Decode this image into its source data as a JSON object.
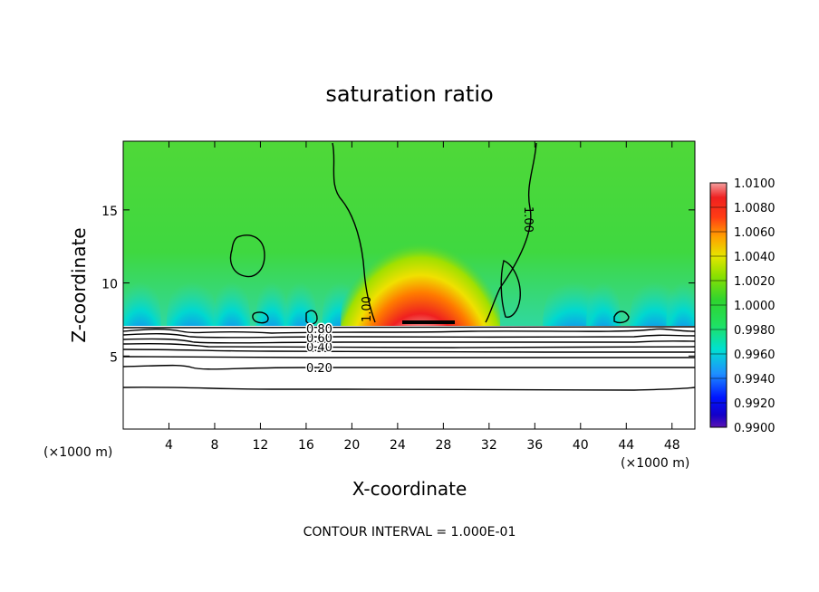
{
  "chart_data": {
    "type": "heatmap",
    "title": "saturation ratio",
    "xlabel": "X-coordinate",
    "ylabel": "Z-coordinate",
    "x_unit": "(×1000 m)",
    "z_unit": "(×1000 m)",
    "xlim": [
      0,
      50
    ],
    "ylim": [
      0,
      19.7
    ],
    "x_ticks": [
      "4",
      "8",
      "12",
      "16",
      "20",
      "24",
      "28",
      "32",
      "36",
      "40",
      "44",
      "48"
    ],
    "y_ticks": [
      "5",
      "10",
      "15"
    ],
    "colorbar": {
      "min": 0.99,
      "max": 1.01,
      "labels": [
        "1.0100",
        "1.0080",
        "1.0060",
        "1.0040",
        "1.0020",
        "1.0000",
        "0.9980",
        "0.9960",
        "0.9940",
        "0.9920",
        "0.9900"
      ]
    },
    "contour_labels": [
      "0.20",
      "0.40",
      "0.60",
      "0.80",
      "1.00",
      "1.00"
    ],
    "contour_interval_text": "CONTOUR INTERVAL = 1.000E-01",
    "features": {
      "saturated_plume_center_x": 26,
      "saturated_plume_top_z": 11.5,
      "saturated_plume_base_x_range": [
        22,
        31
      ],
      "ground_level_z": 7.2
    }
  },
  "colors": {
    "background": "#ffffff",
    "high": "#f08888",
    "mid": "#2fd42f",
    "low": "#5a14b4"
  }
}
